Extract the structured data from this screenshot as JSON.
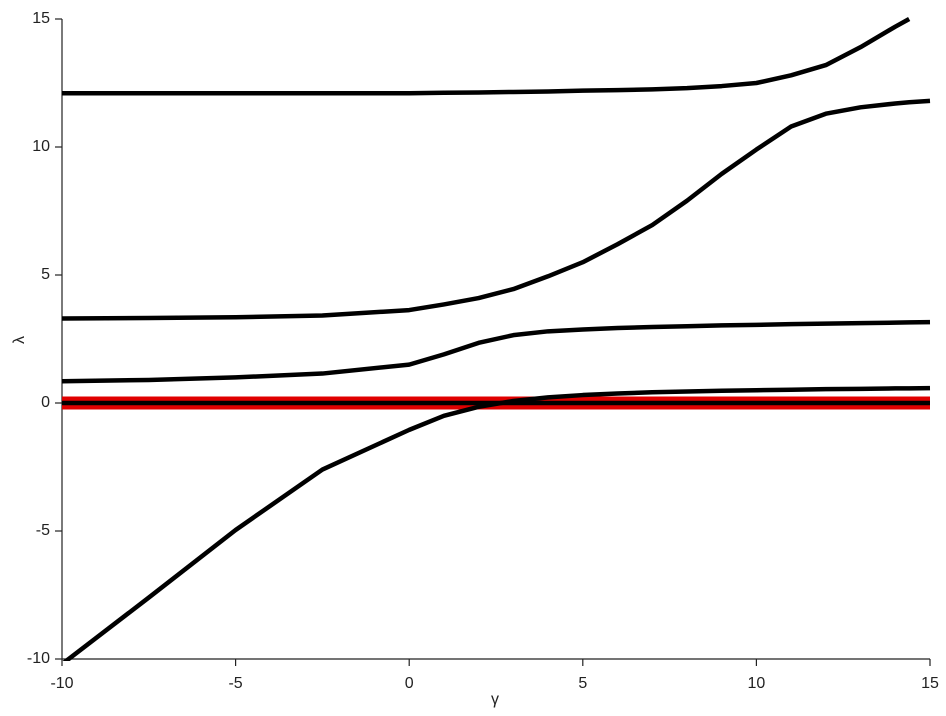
{
  "chart_data": {
    "type": "line",
    "xlabel": "γ",
    "ylabel": "λ",
    "x": [
      -10,
      -7.5,
      -5,
      -2.5,
      0,
      1,
      2,
      3,
      4,
      5,
      6,
      7,
      8,
      9,
      10,
      11,
      12,
      13,
      14,
      14.4,
      15
    ],
    "series": [
      {
        "color": "#e00000",
        "values": [
          0,
          0,
          0,
          0,
          0,
          0,
          0,
          0,
          0,
          0,
          0,
          0,
          0,
          0,
          0,
          0,
          0,
          0,
          0,
          0,
          0
        ]
      },
      {
        "color": "#000000",
        "values": [
          0,
          0,
          0,
          0,
          0,
          0,
          0,
          0,
          0,
          0,
          0,
          0,
          0,
          0,
          0,
          0,
          0,
          0,
          0,
          0,
          0
        ]
      },
      {
        "color": "#000000",
        "values": [
          12.1,
          12.1,
          12.1,
          12.1,
          12.1,
          12.12,
          12.13,
          12.15,
          12.17,
          12.2,
          12.22,
          12.25,
          12.3,
          12.38,
          12.5,
          12.8,
          13.2,
          13.9,
          14.7,
          15.0,
          null
        ]
      },
      {
        "color": "#000000",
        "values": [
          3.3,
          3.32,
          3.35,
          3.42,
          3.63,
          3.85,
          4.1,
          4.45,
          4.95,
          5.5,
          6.2,
          6.95,
          7.9,
          8.95,
          9.9,
          10.8,
          11.3,
          11.55,
          11.7,
          11.75,
          11.8
        ]
      },
      {
        "color": "#000000",
        "values": [
          0.85,
          0.9,
          1.0,
          1.15,
          1.5,
          1.9,
          2.35,
          2.65,
          2.8,
          2.87,
          2.93,
          2.97,
          3.0,
          3.03,
          3.05,
          3.08,
          3.1,
          3.12,
          3.14,
          3.15,
          3.16
        ]
      },
      {
        "color": "#000000",
        "values": [
          -10.2,
          -7.6,
          -4.96,
          -2.6,
          -1.05,
          -0.5,
          -0.15,
          0.08,
          0.22,
          0.31,
          0.37,
          0.42,
          0.45,
          0.48,
          0.5,
          0.52,
          0.54,
          0.55,
          0.57,
          0.57,
          0.58
        ]
      }
    ],
    "xlim": [
      -10,
      15
    ],
    "ylim": [
      -10,
      15
    ],
    "xticks": [
      -10,
      -5,
      0,
      5,
      10,
      15
    ],
    "yticks": [
      -10,
      -5,
      0,
      5,
      10,
      15
    ]
  }
}
